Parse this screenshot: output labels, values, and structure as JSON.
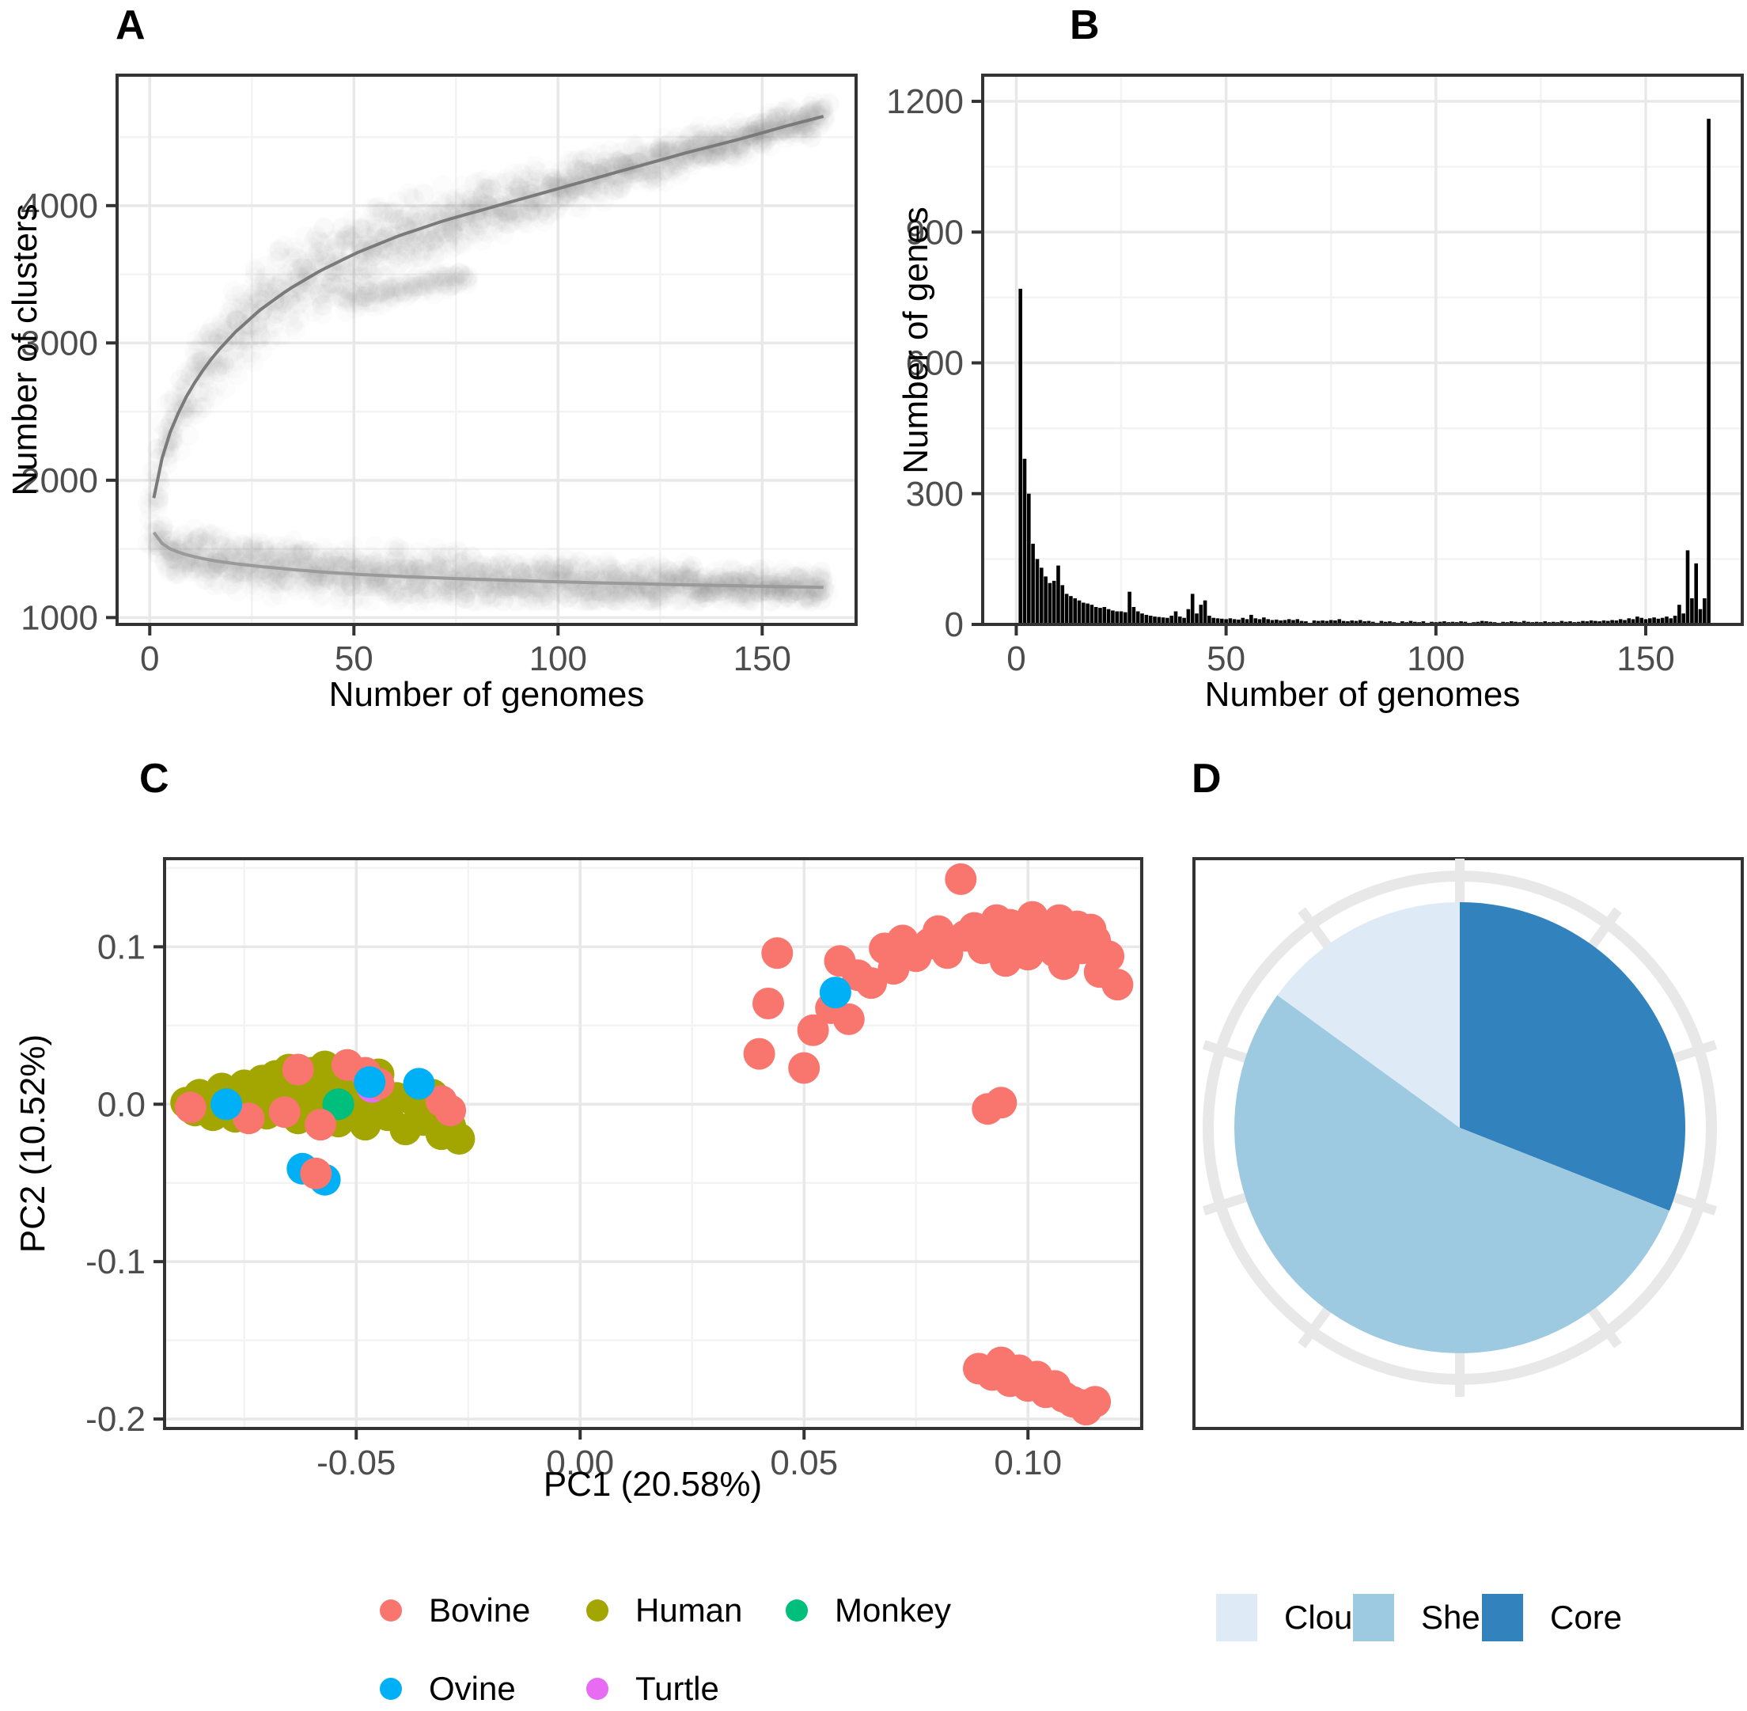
{
  "figure": {
    "panel_labels": {
      "a": "A",
      "b": "B",
      "c": "C",
      "d": "D"
    }
  },
  "chart_data": [
    {
      "panel": "A",
      "type": "scatter",
      "description": "Pangenome rarefaction: cloud of permutation points with fitted pangenome (rising) and core-genome (falling) curves",
      "xlabel": "Number of genomes",
      "ylabel": "Number of clusters",
      "xlim": [
        -8,
        173
      ],
      "ylim": [
        950,
        4950
      ],
      "x_ticks": {
        "values": [
          0,
          50,
          100,
          150
        ],
        "labels": [
          "0",
          "50",
          "100",
          "150"
        ]
      },
      "y_ticks": {
        "values": [
          1000,
          2000,
          3000,
          4000
        ],
        "labels": [
          "1000",
          "2000",
          "3000",
          "4000"
        ]
      },
      "series": [
        {
          "name": "pangenome-curve",
          "x": [
            1,
            3,
            5,
            8,
            12,
            16,
            21,
            27,
            34,
            42,
            51,
            61,
            72,
            84,
            96,
            108,
            120,
            132,
            144,
            156,
            165
          ],
          "y": [
            1870,
            2160,
            2350,
            2560,
            2760,
            2920,
            3080,
            3240,
            3390,
            3530,
            3660,
            3780,
            3890,
            3990,
            4090,
            4190,
            4290,
            4390,
            4480,
            4580,
            4650
          ]
        },
        {
          "name": "core-genome-curve",
          "x": [
            1,
            3,
            5,
            8,
            12,
            16,
            21,
            27,
            34,
            42,
            51,
            61,
            72,
            84,
            96,
            108,
            120,
            132,
            144,
            156,
            165
          ],
          "y": [
            1620,
            1540,
            1500,
            1465,
            1435,
            1412,
            1392,
            1372,
            1352,
            1332,
            1315,
            1300,
            1287,
            1275,
            1264,
            1254,
            1246,
            1238,
            1231,
            1224,
            1220
          ]
        }
      ],
      "cloud": {
        "color": "#7d7d7d",
        "alpha": 0.022,
        "dot_radius": 13,
        "draws_per_genome": 9,
        "pan_spread_x": [
          1,
          5,
          10,
          20,
          30,
          45,
          60,
          80,
          100,
          120,
          140,
          165
        ],
        "pan_spread": [
          120,
          260,
          330,
          380,
          380,
          350,
          310,
          260,
          220,
          180,
          150,
          130
        ],
        "core_spread_x": [
          1,
          5,
          10,
          20,
          30,
          45,
          60,
          80,
          100,
          120,
          140,
          165
        ],
        "core_spread": [
          140,
          200,
          220,
          230,
          230,
          230,
          225,
          215,
          195,
          175,
          155,
          135
        ],
        "sub_branch": {
          "x0": 48,
          "x1": 78,
          "y0": 3300,
          "y1": 3480,
          "spread": 90,
          "draws": 4
        }
      }
    },
    {
      "panel": "B",
      "type": "bar",
      "description": "Gene frequency spectrum: number of gene clusters present in N genomes",
      "xlabel": "Number of genomes",
      "ylabel": "Number of genes",
      "xlim": [
        -8,
        173
      ],
      "ylim": [
        0,
        1260
      ],
      "x_ticks": {
        "values": [
          0,
          50,
          100,
          150
        ],
        "labels": [
          "0",
          "50",
          "100",
          "150"
        ]
      },
      "y_ticks": {
        "values": [
          0,
          300,
          600,
          900,
          1200
        ],
        "labels": [
          "0",
          "300",
          "600",
          "900",
          "1200"
        ]
      },
      "bar_color": "#000000",
      "x_start": 1,
      "counts": [
        770,
        380,
        300,
        185,
        150,
        130,
        110,
        95,
        100,
        135,
        90,
        70,
        65,
        60,
        55,
        50,
        48,
        45,
        40,
        38,
        40,
        35,
        32,
        30,
        30,
        28,
        75,
        40,
        30,
        25,
        22,
        20,
        18,
        17,
        16,
        15,
        20,
        30,
        18,
        15,
        35,
        70,
        25,
        45,
        55,
        20,
        15,
        14,
        13,
        12,
        14,
        12,
        11,
        15,
        12,
        22,
        14,
        12,
        16,
        12,
        10,
        11,
        9,
        10,
        12,
        10,
        12,
        8,
        7,
        0,
        9,
        8,
        9,
        8,
        10,
        9,
        12,
        8,
        7,
        9,
        8,
        10,
        7,
        8,
        6,
        0,
        8,
        6,
        7,
        5,
        0,
        7,
        5,
        8,
        6,
        5,
        7,
        0,
        6,
        5,
        6,
        7,
        5,
        6,
        5,
        7,
        6,
        0,
        5,
        6,
        8,
        7,
        6,
        5,
        0,
        6,
        5,
        7,
        6,
        5,
        8,
        6,
        5,
        6,
        5,
        7,
        5,
        6,
        5,
        8,
        6,
        7,
        5,
        6,
        8,
        7,
        9,
        8,
        7,
        9,
        8,
        10,
        9,
        12,
        10,
        14,
        12,
        18,
        15,
        12,
        14,
        16,
        13,
        15,
        18,
        14,
        20,
        45,
        25,
        170,
        60,
        140,
        35,
        60,
        1160
      ]
    },
    {
      "panel": "C",
      "type": "scatter",
      "description": "PCA of accessory gene content coloured by host species",
      "xlabel": "PC1 (20.58%)",
      "ylabel": "PC2 (10.52%)",
      "xlim": [
        -0.0928,
        0.1254
      ],
      "ylim": [
        -0.206,
        0.156
      ],
      "x_ticks": {
        "values": [
          -0.05,
          0.0,
          0.05,
          0.1
        ],
        "labels": [
          "-0.05",
          "0.00",
          "0.05",
          "0.10"
        ]
      },
      "y_ticks": {
        "values": [
          0.1,
          0.0,
          -0.1,
          -0.2
        ],
        "labels": [
          "0.1",
          "0.0",
          "-0.1",
          "-0.2"
        ]
      },
      "dot_radius": 20,
      "groups": {
        "bovine": "#F8766D",
        "human": "#A3A500",
        "monkey": "#00BF7D",
        "ovine": "#00B0F6",
        "turtle": "#E76BF3"
      },
      "points": [
        [
          -0.088,
          0.001,
          "human"
        ],
        [
          -0.086,
          -0.004,
          "human"
        ],
        [
          -0.085,
          0.006,
          "human"
        ],
        [
          -0.083,
          0.0,
          "human"
        ],
        [
          -0.082,
          -0.007,
          "human"
        ],
        [
          -0.081,
          0.004,
          "human"
        ],
        [
          -0.08,
          0.01,
          "human"
        ],
        [
          -0.079,
          -0.002,
          "human"
        ],
        [
          -0.078,
          0.005,
          "human"
        ],
        [
          -0.077,
          -0.008,
          "human"
        ],
        [
          -0.076,
          0.002,
          "human"
        ],
        [
          -0.075,
          0.012,
          "human"
        ],
        [
          -0.074,
          -0.004,
          "human"
        ],
        [
          -0.073,
          0.007,
          "human"
        ],
        [
          -0.072,
          0.0,
          "human"
        ],
        [
          -0.071,
          0.015,
          "human"
        ],
        [
          -0.07,
          -0.006,
          "human"
        ],
        [
          -0.069,
          0.009,
          "human"
        ],
        [
          -0.068,
          0.018,
          "human"
        ],
        [
          -0.067,
          -0.001,
          "human"
        ],
        [
          -0.066,
          0.013,
          "human"
        ],
        [
          -0.065,
          0.022,
          "human"
        ],
        [
          -0.064,
          0.005,
          "human"
        ],
        [
          -0.063,
          -0.009,
          "human"
        ],
        [
          -0.062,
          0.016,
          "human"
        ],
        [
          -0.061,
          0.001,
          "human"
        ],
        [
          -0.06,
          0.02,
          "human"
        ],
        [
          -0.059,
          -0.005,
          "human"
        ],
        [
          -0.058,
          0.011,
          "human"
        ],
        [
          -0.057,
          0.024,
          "human"
        ],
        [
          -0.056,
          0.003,
          "human"
        ],
        [
          -0.055,
          0.017,
          "human"
        ],
        [
          -0.054,
          -0.011,
          "human"
        ],
        [
          -0.053,
          0.008,
          "human"
        ],
        [
          -0.052,
          0.021,
          "human"
        ],
        [
          -0.051,
          -0.002,
          "human"
        ],
        [
          -0.05,
          0.014,
          "human"
        ],
        [
          -0.049,
          0.006,
          "human"
        ],
        [
          -0.048,
          -0.013,
          "human"
        ],
        [
          -0.047,
          0.01,
          "human"
        ],
        [
          -0.046,
          0.0,
          "human"
        ],
        [
          -0.045,
          0.019,
          "human"
        ],
        [
          -0.043,
          -0.007,
          "human"
        ],
        [
          -0.041,
          0.004,
          "human"
        ],
        [
          -0.039,
          -0.016,
          "human"
        ],
        [
          -0.037,
          0.002,
          "human"
        ],
        [
          -0.035,
          -0.01,
          "human"
        ],
        [
          -0.033,
          0.006,
          "human"
        ],
        [
          -0.031,
          -0.019,
          "human"
        ],
        [
          -0.029,
          -0.014,
          "human"
        ],
        [
          -0.027,
          -0.022,
          "human"
        ],
        [
          -0.054,
          0.0,
          "monkey"
        ],
        [
          -0.0465,
          0.011,
          "turtle"
        ],
        [
          -0.062,
          -0.041,
          "ovine"
        ],
        [
          -0.057,
          -0.048,
          "ovine"
        ],
        [
          -0.087,
          -0.002,
          "bovine"
        ],
        [
          -0.074,
          -0.009,
          "bovine"
        ],
        [
          -0.066,
          -0.005,
          "bovine"
        ],
        [
          -0.058,
          -0.013,
          "bovine"
        ],
        [
          -0.052,
          0.025,
          "bovine"
        ],
        [
          -0.048,
          0.02,
          "bovine"
        ],
        [
          -0.045,
          0.013,
          "bovine"
        ],
        [
          -0.031,
          0.002,
          "bovine"
        ],
        [
          -0.029,
          -0.004,
          "bovine"
        ],
        [
          -0.059,
          -0.044,
          "bovine"
        ],
        [
          -0.063,
          0.022,
          "bovine"
        ],
        [
          0.04,
          0.032,
          "bovine"
        ],
        [
          0.042,
          0.064,
          "bovine"
        ],
        [
          0.044,
          0.096,
          "bovine"
        ],
        [
          0.05,
          0.023,
          "bovine"
        ],
        [
          0.052,
          0.047,
          "bovine"
        ],
        [
          0.056,
          0.061,
          "bovine"
        ],
        [
          0.058,
          0.091,
          "bovine"
        ],
        [
          0.06,
          0.054,
          "bovine"
        ],
        [
          0.062,
          0.082,
          "bovine"
        ],
        [
          0.065,
          0.077,
          "bovine"
        ],
        [
          0.068,
          0.099,
          "bovine"
        ],
        [
          0.07,
          0.086,
          "bovine"
        ],
        [
          0.072,
          0.104,
          "bovine"
        ],
        [
          0.075,
          0.094,
          "bovine"
        ],
        [
          0.078,
          0.102,
          "bovine"
        ],
        [
          0.08,
          0.11,
          "bovine"
        ],
        [
          0.082,
          0.096,
          "bovine"
        ],
        [
          0.085,
          0.143,
          "bovine"
        ],
        [
          0.086,
          0.107,
          "bovine"
        ],
        [
          0.088,
          0.112,
          "bovine"
        ],
        [
          0.09,
          0.099,
          "bovine"
        ],
        [
          0.091,
          0.107,
          "bovine"
        ],
        [
          0.093,
          0.117,
          "bovine"
        ],
        [
          0.094,
          0.103,
          "bovine"
        ],
        [
          0.095,
          0.091,
          "bovine"
        ],
        [
          0.096,
          0.114,
          "bovine"
        ],
        [
          0.098,
          0.1,
          "bovine"
        ],
        [
          0.099,
          0.109,
          "bovine"
        ],
        [
          0.1,
          0.095,
          "bovine"
        ],
        [
          0.101,
          0.119,
          "bovine"
        ],
        [
          0.103,
          0.104,
          "bovine"
        ],
        [
          0.104,
          0.113,
          "bovine"
        ],
        [
          0.106,
          0.097,
          "bovine"
        ],
        [
          0.107,
          0.117,
          "bovine"
        ],
        [
          0.108,
          0.089,
          "bovine"
        ],
        [
          0.11,
          0.107,
          "bovine"
        ],
        [
          0.111,
          0.113,
          "bovine"
        ],
        [
          0.112,
          0.099,
          "bovine"
        ],
        [
          0.114,
          0.111,
          "bovine"
        ],
        [
          0.115,
          0.104,
          "bovine"
        ],
        [
          0.116,
          0.084,
          "bovine"
        ],
        [
          0.118,
          0.094,
          "bovine"
        ],
        [
          0.12,
          0.076,
          "bovine"
        ],
        [
          0.091,
          -0.003,
          "bovine"
        ],
        [
          0.094,
          0.001,
          "bovine"
        ],
        [
          0.089,
          -0.168,
          "bovine"
        ],
        [
          0.092,
          -0.172,
          "bovine"
        ],
        [
          0.094,
          -0.164,
          "bovine"
        ],
        [
          0.096,
          -0.176,
          "bovine"
        ],
        [
          0.098,
          -0.169,
          "bovine"
        ],
        [
          0.1,
          -0.179,
          "bovine"
        ],
        [
          0.102,
          -0.173,
          "bovine"
        ],
        [
          0.104,
          -0.183,
          "bovine"
        ],
        [
          0.106,
          -0.179,
          "bovine"
        ],
        [
          0.108,
          -0.186,
          "bovine"
        ],
        [
          0.11,
          -0.189,
          "bovine"
        ],
        [
          0.112,
          -0.191,
          "bovine"
        ],
        [
          0.113,
          -0.194,
          "bovine"
        ],
        [
          0.115,
          -0.189,
          "bovine"
        ],
        [
          -0.079,
          0.0,
          "ovine"
        ],
        [
          -0.047,
          0.014,
          "ovine"
        ],
        [
          -0.036,
          0.013,
          "ovine"
        ],
        [
          0.057,
          0.071,
          "ovine"
        ]
      ]
    },
    {
      "panel": "D",
      "type": "pie",
      "description": "Pangenome composition",
      "start_angle_deg": 0,
      "direction": "clockwise",
      "slices_clockwise_from_top": [
        {
          "label": "Core",
          "percent": 31,
          "color": "#3182BD"
        },
        {
          "label": "Shell",
          "percent": 54,
          "color": "#9ECAE1"
        },
        {
          "label": "Cloud",
          "percent": 15,
          "color": "#DEEBF7"
        }
      ],
      "ring": {
        "color": "#E8E8E8",
        "n_ticks": 10
      }
    }
  ],
  "legend_species": {
    "items": [
      {
        "key": "bovine",
        "label": "Bovine",
        "color": "#F8766D"
      },
      {
        "key": "human",
        "label": "Human",
        "color": "#A3A500"
      },
      {
        "key": "monkey",
        "label": "Monkey",
        "color": "#00BF7D"
      },
      {
        "key": "ovine",
        "label": "Ovine",
        "color": "#00B0F6"
      },
      {
        "key": "turtle",
        "label": "Turtle",
        "color": "#E76BF3"
      }
    ]
  },
  "legend_pangenome": {
    "items": [
      {
        "key": "cloud",
        "label": "Cloud",
        "color": "#DEEBF7"
      },
      {
        "key": "shell",
        "label": "Shell",
        "color": "#9ECAE1"
      },
      {
        "key": "core",
        "label": "Core",
        "color": "#3182BD"
      }
    ]
  },
  "theme": {
    "panel_border": "#333333",
    "grid_major": "#E8E8E8",
    "grid_minor": "#F3F3F3",
    "tick_color": "#333333",
    "tick_label_color": "#4D4D4D",
    "curve_pan_color": "#7a7a7a",
    "curve_core_color": "#9a9a9a"
  }
}
